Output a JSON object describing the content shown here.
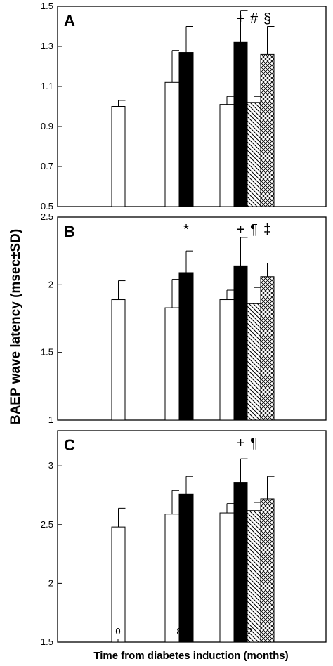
{
  "chart_data": {
    "type": "bar",
    "ylabel": "BAEP wave latency (msec±SD)",
    "xlabel": "Time from diabetes induction (months)",
    "x_ticks": [
      "0",
      "8",
      "12"
    ],
    "bar_styles": [
      "white",
      "black",
      "hatched",
      "crosshatched"
    ],
    "panels": [
      {
        "letter": "A",
        "ylim": [
          0.5,
          1.5
        ],
        "yticks": [
          "0.5",
          "0.7",
          "0.9",
          "1.1",
          "1.3",
          "1.5"
        ],
        "bars": [
          {
            "time": "0",
            "style": "white",
            "value": 1.0,
            "sd": 0.03
          },
          {
            "time": "8",
            "style": "white",
            "value": 1.12,
            "sd": 0.16
          },
          {
            "time": "8",
            "style": "black",
            "value": 1.27,
            "sd": 0.13
          },
          {
            "time": "12",
            "style": "white",
            "value": 1.01,
            "sd": 0.04
          },
          {
            "time": "12",
            "style": "black",
            "value": 1.32,
            "sd": 0.16
          },
          {
            "time": "12",
            "style": "hatched",
            "value": 1.02,
            "sd": 0.03
          },
          {
            "time": "12",
            "style": "crosshatched",
            "value": 1.26,
            "sd": 0.14
          }
        ],
        "annotations": [
          {
            "text": "+",
            "bar": 4
          },
          {
            "text": "#",
            "bar": 5
          },
          {
            "text": "§",
            "bar": 6
          }
        ]
      },
      {
        "letter": "B",
        "ylim": [
          1,
          2.5
        ],
        "yticks": [
          "1",
          "1.5",
          "2",
          "2.5"
        ],
        "bars": [
          {
            "time": "0",
            "style": "white",
            "value": 1.89,
            "sd": 0.14
          },
          {
            "time": "8",
            "style": "white",
            "value": 1.83,
            "sd": 0.21
          },
          {
            "time": "8",
            "style": "black",
            "value": 2.09,
            "sd": 0.16
          },
          {
            "time": "12",
            "style": "white",
            "value": 1.89,
            "sd": 0.07
          },
          {
            "time": "12",
            "style": "black",
            "value": 2.14,
            "sd": 0.21
          },
          {
            "time": "12",
            "style": "hatched",
            "value": 1.86,
            "sd": 0.12
          },
          {
            "time": "12",
            "style": "crosshatched",
            "value": 2.06,
            "sd": 0.1
          }
        ],
        "annotations": [
          {
            "text": "*",
            "bar": 2
          },
          {
            "text": "+",
            "bar": 4
          },
          {
            "text": "¶",
            "bar": 5
          },
          {
            "text": "‡",
            "bar": 6
          }
        ]
      },
      {
        "letter": "C",
        "ylim": [
          1.5,
          3.3
        ],
        "yticks": [
          "1.5",
          "2",
          "2.5",
          "3"
        ],
        "bars": [
          {
            "time": "0",
            "style": "white",
            "value": 2.48,
            "sd": 0.16
          },
          {
            "time": "8",
            "style": "white",
            "value": 2.59,
            "sd": 0.2
          },
          {
            "time": "8",
            "style": "black",
            "value": 2.76,
            "sd": 0.15
          },
          {
            "time": "12",
            "style": "white",
            "value": 2.6,
            "sd": 0.08
          },
          {
            "time": "12",
            "style": "black",
            "value": 2.86,
            "sd": 0.2
          },
          {
            "time": "12",
            "style": "hatched",
            "value": 2.62,
            "sd": 0.07
          },
          {
            "time": "12",
            "style": "crosshatched",
            "value": 2.72,
            "sd": 0.19
          }
        ],
        "annotations": [
          {
            "text": "+",
            "bar": 4
          },
          {
            "text": "¶",
            "bar": 5
          }
        ]
      }
    ]
  }
}
